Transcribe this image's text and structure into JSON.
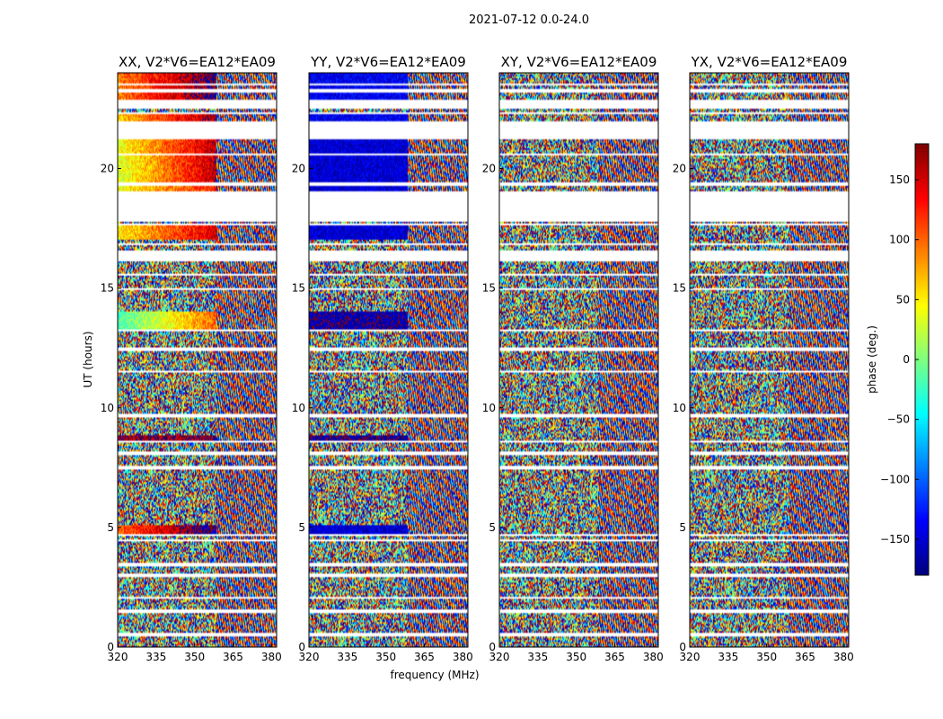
{
  "chart_data": {
    "type": "heatmap",
    "title": "2021-07-12 0.0-24.0",
    "xlabel": "frequency (MHz)",
    "ylabel": "UT (hours)",
    "xlim": [
      320,
      382
    ],
    "ylim": [
      0,
      24
    ],
    "xticks": [
      320,
      335,
      350,
      365,
      380
    ],
    "yticks": [
      0,
      5,
      10,
      15,
      20
    ],
    "panels": [
      {
        "title": "XX, V2*V6=EA12*EA09",
        "polarization": "XX"
      },
      {
        "title": "YY, V2*V6=EA12*EA09",
        "polarization": "YY"
      },
      {
        "title": "XY, V2*V6=EA12*EA09",
        "polarization": "XY"
      },
      {
        "title": "YX, V2*V6=EA12*EA09",
        "polarization": "YX"
      }
    ],
    "colorbar": {
      "label": "phase (deg.)",
      "range": [
        -180,
        180
      ],
      "ticks": [
        -150,
        -100,
        -50,
        0,
        50,
        100,
        150
      ],
      "tick_labels": [
        "−150",
        "−100",
        "−50",
        "0",
        "50",
        "100",
        "150"
      ],
      "colormap": "jet"
    },
    "data_gaps_hours": [
      [
        0.45,
        0.6
      ],
      [
        1.45,
        1.55
      ],
      [
        2.0,
        2.1
      ],
      [
        2.95,
        3.05
      ],
      [
        3.4,
        3.5
      ],
      [
        4.4,
        4.5
      ],
      [
        4.65,
        4.75
      ],
      [
        7.45,
        7.55
      ],
      [
        8.05,
        8.15
      ],
      [
        8.55,
        8.65
      ],
      [
        9.6,
        9.75
      ],
      [
        11.45,
        11.55
      ],
      [
        12.4,
        12.5
      ],
      [
        13.2,
        13.3
      ],
      [
        14.9,
        15.0
      ],
      [
        15.5,
        15.6
      ],
      [
        16.1,
        16.6
      ],
      [
        16.8,
        16.9
      ],
      [
        17.6,
        17.7
      ],
      [
        17.8,
        19.05
      ],
      [
        19.3,
        19.45
      ],
      [
        20.55,
        20.6
      ],
      [
        21.25,
        21.95
      ],
      [
        22.25,
        22.35
      ],
      [
        22.5,
        22.85
      ],
      [
        23.15,
        23.3
      ],
      [
        23.45,
        23.55
      ]
    ],
    "coherent_phase_periods": [
      {
        "start": 4.75,
        "end": 5.1,
        "xx_phase_low_to_high_freq": [
          100,
          -160
        ],
        "yy_phase": -150
      },
      {
        "start": 8.6,
        "end": 8.85,
        "xx_phase": 170,
        "yy_phase": -170
      },
      {
        "start": 13.3,
        "end": 14.0,
        "xx_phase_low_to_high_freq": [
          -20,
          100
        ],
        "yy_phase": -165
      },
      {
        "start": 17.05,
        "end": 17.6,
        "xx_phase_low_to_high_freq": [
          50,
          150
        ],
        "yy_phase": -150
      },
      {
        "start": 19.05,
        "end": 19.3,
        "xx_phase_low_to_high_freq": [
          40,
          130
        ],
        "yy_phase": -150
      },
      {
        "start": 19.45,
        "end": 20.55,
        "xx_phase_low_to_high_freq": [
          30,
          160
        ],
        "yy_phase": -150
      },
      {
        "start": 20.6,
        "end": 21.25,
        "xx_phase_low_to_high_freq": [
          40,
          160
        ],
        "yy_phase": -150
      },
      {
        "start": 21.95,
        "end": 22.25,
        "xx_phase_low_to_high_freq": [
          60,
          170
        ],
        "yy_phase": -140
      },
      {
        "start": 22.85,
        "end": 24.0,
        "xx_phase_low_to_high_freq": [
          90,
          -170
        ],
        "yy_phase": -140
      }
    ]
  }
}
